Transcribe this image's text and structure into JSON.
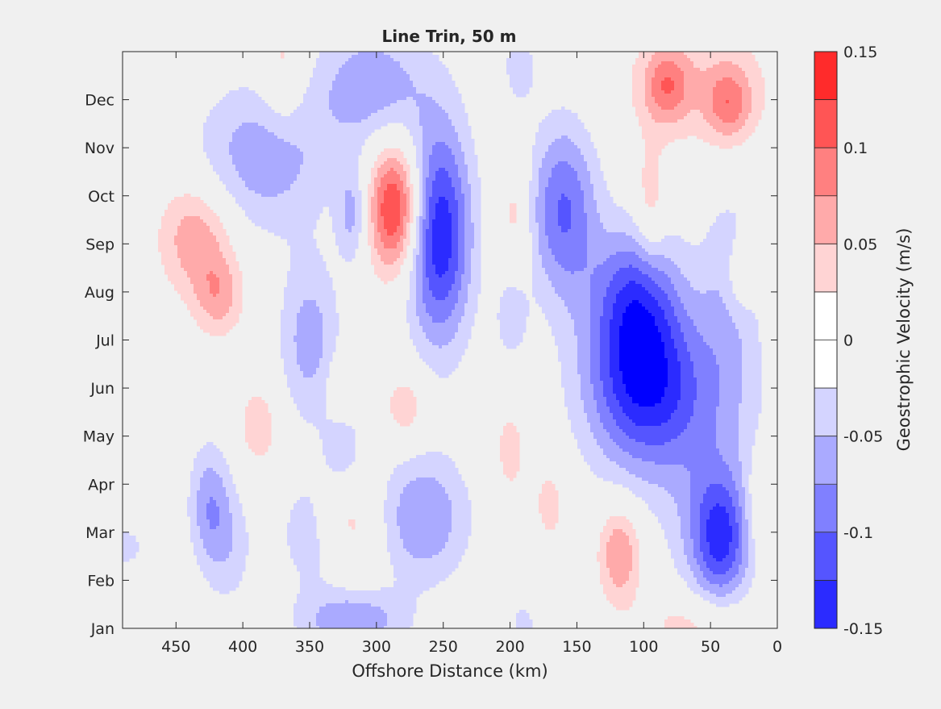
{
  "chart_data": {
    "type": "contour",
    "title": "Line Trin, 50 m",
    "xlabel": "Offshore Distance (km)",
    "ylabel": "",
    "x_reversed": true,
    "xlim": [
      0,
      490
    ],
    "xticks": [
      450,
      400,
      350,
      300,
      250,
      200,
      150,
      100,
      50,
      0
    ],
    "ylim": [
      1,
      13
    ],
    "yticks": [
      {
        "v": 1,
        "label": "Jan"
      },
      {
        "v": 2,
        "label": "Feb"
      },
      {
        "v": 3,
        "label": "Mar"
      },
      {
        "v": 4,
        "label": "Apr"
      },
      {
        "v": 5,
        "label": "May"
      },
      {
        "v": 6,
        "label": "Jun"
      },
      {
        "v": 7,
        "label": "Jul"
      },
      {
        "v": 8,
        "label": "Aug"
      },
      {
        "v": 9,
        "label": "Sep"
      },
      {
        "v": 10,
        "label": "Oct"
      },
      {
        "v": 11,
        "label": "Nov"
      },
      {
        "v": 12,
        "label": "Dec"
      }
    ],
    "grid": false,
    "colorbar": {
      "label": "Geostrophic Velocity (m/s)",
      "levels": [
        -0.15,
        -0.125,
        -0.1,
        -0.075,
        -0.05,
        -0.025,
        0,
        0.025,
        0.05,
        0.075,
        0.1,
        0.125,
        0.15
      ],
      "colors": [
        "#0000ff",
        "#2b2bff",
        "#5555ff",
        "#8080ff",
        "#aaaaff",
        "#d4d4ff",
        "#ffffff",
        "#ffffff",
        "#ffd4d4",
        "#ffaaaa",
        "#ff8080",
        "#ff5555",
        "#ff2b2b",
        "#ff0000"
      ],
      "ticks": [
        0.15,
        0.1,
        0.05,
        0,
        -0.05,
        -0.1,
        -0.15
      ],
      "tick_labels": [
        "0.15",
        "0.1",
        "0.05",
        "0",
        "-0.05",
        "-0.1",
        "-0.15"
      ]
    },
    "features": [
      {
        "x": 435,
        "y": 9.15,
        "sx": 20,
        "sy": 0.85,
        "amp": 0.072
      },
      {
        "x": 418,
        "y": 7.9,
        "sx": 13,
        "sy": 0.6,
        "amp": 0.058
      },
      {
        "x": 370,
        "y": 12.6,
        "sx": 12,
        "sy": 0.9,
        "amp": 0.042
      },
      {
        "x": 385,
        "y": 10.8,
        "sx": 36,
        "sy": 1.1,
        "amp": -0.068
      },
      {
        "x": 350,
        "y": 7.0,
        "sx": 16,
        "sy": 1.2,
        "amp": -0.063
      },
      {
        "x": 318,
        "y": 9.6,
        "sx": 8,
        "sy": 0.7,
        "amp": -0.058
      },
      {
        "x": 303,
        "y": 12.3,
        "sx": 30,
        "sy": 0.9,
        "amp": -0.068
      },
      {
        "x": 286,
        "y": 9.75,
        "sx": 14,
        "sy": 0.95,
        "amp": 0.142
      },
      {
        "x": 253,
        "y": 9.2,
        "sx": 17,
        "sy": 1.6,
        "amp": -0.148
      },
      {
        "x": 193,
        "y": 12.7,
        "sx": 9,
        "sy": 0.6,
        "amp": -0.04
      },
      {
        "x": 196,
        "y": 9.6,
        "sx": 8,
        "sy": 0.9,
        "amp": 0.04
      },
      {
        "x": 199,
        "y": 7.5,
        "sx": 9,
        "sy": 0.7,
        "amp": -0.04
      },
      {
        "x": 160,
        "y": 9.7,
        "sx": 18,
        "sy": 1.3,
        "amp": -0.102
      },
      {
        "x": 103,
        "y": 6.7,
        "sx": 28,
        "sy": 1.45,
        "amp": -0.125
      },
      {
        "x": 108,
        "y": 8.1,
        "sx": 20,
        "sy": 0.9,
        "amp": -0.05
      },
      {
        "x": 80,
        "y": 5.7,
        "sx": 42,
        "sy": 1.2,
        "amp": -0.062
      },
      {
        "x": 35,
        "y": 8.0,
        "sx": 16,
        "sy": 1.6,
        "amp": -0.045
      },
      {
        "x": 95,
        "y": 9.8,
        "sx": 8,
        "sy": 0.9,
        "amp": 0.045
      },
      {
        "x": 83,
        "y": 12.3,
        "sx": 12,
        "sy": 0.55,
        "amp": 0.07
      },
      {
        "x": 36,
        "y": 11.9,
        "sx": 12,
        "sy": 0.55,
        "amp": 0.07
      },
      {
        "x": 58,
        "y": 12.3,
        "sx": 42,
        "sy": 0.95,
        "amp": 0.04
      },
      {
        "x": 28,
        "y": 8.3,
        "sx": 8,
        "sy": 0.55,
        "amp": 0.04
      },
      {
        "x": 118,
        "y": 2.55,
        "sx": 11,
        "sy": 0.7,
        "amp": 0.078
      },
      {
        "x": 42,
        "y": 2.85,
        "sx": 15,
        "sy": 0.95,
        "amp": -0.105
      },
      {
        "x": 52,
        "y": 3.2,
        "sx": 24,
        "sy": 1.3,
        "amp": -0.04
      },
      {
        "x": 12,
        "y": 3.5,
        "sx": 8,
        "sy": 0.7,
        "amp": 0.04
      },
      {
        "x": 60,
        "y": 1.1,
        "sx": 30,
        "sy": 0.5,
        "amp": 0.042
      },
      {
        "x": 200,
        "y": 4.7,
        "sx": 10,
        "sy": 0.8,
        "amp": 0.035
      },
      {
        "x": 170,
        "y": 3.6,
        "sx": 10,
        "sy": 0.7,
        "amp": 0.035
      },
      {
        "x": 265,
        "y": 3.3,
        "sx": 24,
        "sy": 0.95,
        "amp": -0.075
      },
      {
        "x": 278,
        "y": 5.6,
        "sx": 12,
        "sy": 0.55,
        "amp": 0.045
      },
      {
        "x": 322,
        "y": 3.2,
        "sx": 18,
        "sy": 0.7,
        "amp": 0.045
      },
      {
        "x": 325,
        "y": 4.8,
        "sx": 10,
        "sy": 0.6,
        "amp": -0.04
      },
      {
        "x": 326,
        "y": 6.0,
        "sx": 8,
        "sy": 0.5,
        "amp": 0.035
      },
      {
        "x": 348,
        "y": 3.0,
        "sx": 18,
        "sy": 0.9,
        "amp": -0.045
      },
      {
        "x": 388,
        "y": 5.2,
        "sx": 12,
        "sy": 0.7,
        "amp": 0.04
      },
      {
        "x": 425,
        "y": 3.6,
        "sx": 11,
        "sy": 0.9,
        "amp": -0.065
      },
      {
        "x": 410,
        "y": 2.7,
        "sx": 13,
        "sy": 0.9,
        "amp": -0.038
      },
      {
        "x": 488,
        "y": 2.7,
        "sx": 12,
        "sy": 0.35,
        "amp": -0.035
      },
      {
        "x": 318,
        "y": 1.15,
        "sx": 28,
        "sy": 0.45,
        "amp": -0.072
      },
      {
        "x": 190,
        "y": 1.1,
        "sx": 7,
        "sy": 0.35,
        "amp": -0.035
      }
    ]
  }
}
